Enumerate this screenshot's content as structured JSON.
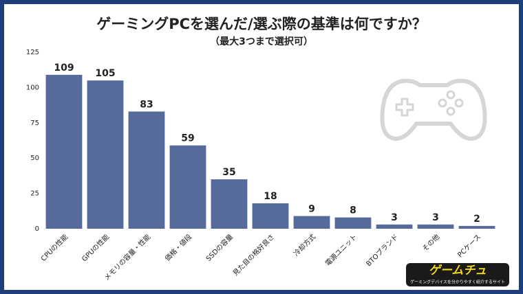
{
  "chart_data": {
    "type": "bar",
    "title": "ゲーミングPCを選んだ/選ぶ際の基準は何ですか？",
    "subtitle": "（最大3つまで選択可）",
    "categories": [
      "CPUの性能",
      "GPUの性能",
      "メモリの容量・性能",
      "価格・値段",
      "SSDの容量",
      "見た目の格好良さ",
      "冷却方式",
      "電源ユニット",
      "BTOブランド",
      "その他",
      "PCケース"
    ],
    "values": [
      109,
      105,
      83,
      59,
      35,
      18,
      9,
      8,
      3,
      3,
      2
    ],
    "color": "#566a9c",
    "ylim": [
      0,
      125
    ],
    "yticks": [
      0,
      25,
      50,
      75,
      100,
      125
    ],
    "grid": false,
    "logo": "ゲームチュ",
    "logo_tagline": "ゲーミングデバイスを分かりやすく紹介するサイト"
  }
}
